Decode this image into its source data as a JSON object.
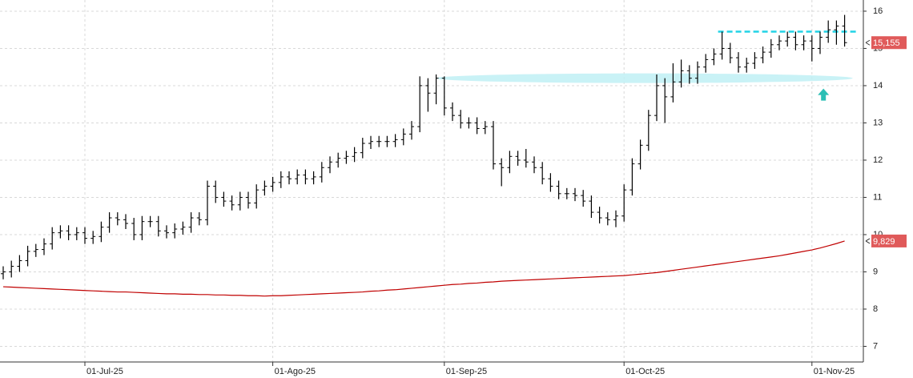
{
  "chart_data": {
    "type": "ohlc",
    "categories": [
      null,
      null,
      null,
      null,
      null,
      null,
      null,
      null,
      null,
      null,
      "01-Jul-25",
      null,
      null,
      null,
      null,
      null,
      null,
      null,
      null,
      null,
      null,
      null,
      null,
      null,
      null,
      null,
      null,
      null,
      null,
      null,
      null,
      null,
      null,
      "01-Ago-25",
      null,
      null,
      null,
      null,
      null,
      null,
      null,
      null,
      null,
      null,
      null,
      null,
      null,
      null,
      null,
      null,
      null,
      null,
      null,
      null,
      "01-Sep-25",
      null,
      null,
      null,
      null,
      null,
      null,
      null,
      null,
      null,
      null,
      null,
      null,
      null,
      null,
      null,
      null,
      null,
      null,
      null,
      null,
      null,
      "01-Oct-25",
      null,
      null,
      null,
      null,
      null,
      null,
      null,
      null,
      null,
      null,
      null,
      null,
      null,
      null,
      null,
      null,
      null,
      null,
      null,
      null,
      null,
      null,
      "01-Nov-25",
      null,
      null,
      null,
      null
    ],
    "open": [
      8.95,
      9.0,
      9.15,
      9.3,
      9.55,
      9.6,
      9.75,
      10.05,
      10.1,
      10.0,
      10.05,
      9.9,
      9.95,
      10.2,
      10.45,
      10.4,
      10.3,
      10.0,
      10.35,
      10.35,
      10.1,
      10.05,
      10.15,
      10.2,
      10.45,
      10.4,
      11.3,
      11.0,
      10.9,
      10.8,
      11.0,
      10.85,
      11.2,
      11.3,
      11.4,
      11.55,
      11.5,
      11.6,
      11.5,
      11.55,
      11.8,
      11.95,
      12.05,
      12.1,
      12.2,
      12.45,
      12.5,
      12.5,
      12.5,
      12.55,
      12.7,
      12.9,
      14.0,
      13.8,
      14.2,
      13.4,
      13.2,
      13.0,
      13.0,
      12.85,
      12.9,
      11.9,
      11.8,
      12.1,
      12.0,
      11.95,
      11.8,
      11.5,
      11.3,
      11.1,
      11.1,
      11.05,
      10.9,
      10.6,
      10.45,
      10.4,
      10.5,
      11.2,
      11.9,
      12.4,
      13.2,
      14.0,
      13.7,
      14.1,
      14.4,
      14.2,
      14.5,
      14.7,
      14.85,
      15.0,
      14.75,
      14.5,
      14.6,
      14.75,
      14.9,
      15.1,
      15.2,
      15.3,
      15.1,
      15.2,
      15.0,
      15.3,
      15.5,
      15.6
    ],
    "high": [
      9.15,
      9.3,
      9.45,
      9.7,
      9.75,
      9.9,
      10.2,
      10.25,
      10.25,
      10.2,
      10.2,
      10.1,
      10.35,
      10.6,
      10.6,
      10.55,
      10.45,
      10.5,
      10.5,
      10.5,
      10.25,
      10.3,
      10.35,
      10.6,
      10.6,
      11.45,
      11.45,
      11.15,
      11.05,
      11.15,
      11.15,
      11.35,
      11.45,
      11.55,
      11.7,
      11.7,
      11.75,
      11.75,
      11.7,
      11.95,
      12.1,
      12.2,
      12.25,
      12.35,
      12.6,
      12.65,
      12.65,
      12.65,
      12.7,
      12.85,
      13.05,
      14.25,
      14.2,
      14.3,
      14.25,
      13.55,
      13.35,
      13.15,
      13.15,
      13.05,
      13.05,
      12.05,
      12.25,
      12.25,
      12.3,
      12.1,
      11.95,
      11.65,
      11.45,
      11.25,
      11.25,
      11.2,
      11.05,
      10.75,
      10.6,
      10.65,
      11.35,
      12.05,
      12.55,
      13.35,
      14.3,
      14.2,
      14.6,
      14.7,
      14.55,
      14.65,
      14.85,
      15.0,
      15.45,
      15.15,
      14.9,
      14.75,
      14.9,
      15.05,
      15.25,
      15.35,
      15.45,
      15.45,
      15.35,
      15.35,
      15.45,
      15.75,
      15.75,
      15.9
    ],
    "low": [
      8.8,
      8.85,
      9.0,
      9.15,
      9.4,
      9.45,
      9.6,
      9.9,
      9.85,
      9.85,
      9.75,
      9.75,
      9.8,
      10.05,
      10.25,
      10.15,
      9.85,
      9.85,
      10.2,
      9.95,
      9.9,
      9.9,
      10.0,
      10.05,
      10.25,
      10.25,
      10.85,
      10.75,
      10.65,
      10.65,
      10.7,
      10.7,
      11.05,
      11.15,
      11.25,
      11.35,
      11.35,
      11.35,
      11.35,
      11.4,
      11.65,
      11.8,
      11.9,
      11.95,
      12.05,
      12.3,
      12.35,
      12.35,
      12.35,
      12.4,
      12.55,
      12.75,
      13.3,
      13.5,
      13.2,
      13.05,
      12.85,
      12.85,
      12.7,
      12.7,
      11.75,
      11.3,
      11.65,
      11.85,
      11.8,
      11.65,
      11.35,
      11.15,
      10.95,
      10.95,
      10.9,
      10.75,
      10.45,
      10.3,
      10.25,
      10.2,
      10.35,
      11.05,
      11.75,
      12.25,
      13.05,
      13.0,
      13.55,
      13.95,
      14.05,
      14.05,
      14.35,
      14.55,
      14.7,
      14.6,
      14.35,
      14.35,
      14.45,
      14.6,
      14.75,
      14.95,
      15.05,
      14.95,
      14.95,
      14.65,
      14.85,
      15.15,
      15.1,
      15.05
    ],
    "close": [
      9.0,
      9.15,
      9.3,
      9.55,
      9.6,
      9.75,
      10.05,
      10.1,
      10.0,
      10.05,
      9.9,
      9.95,
      10.2,
      10.45,
      10.4,
      10.3,
      10.0,
      10.35,
      10.35,
      10.1,
      10.05,
      10.15,
      10.2,
      10.45,
      10.4,
      11.3,
      11.0,
      10.9,
      10.8,
      11.0,
      10.85,
      11.2,
      11.3,
      11.4,
      11.55,
      11.5,
      11.6,
      11.5,
      11.55,
      11.8,
      11.95,
      12.05,
      12.1,
      12.2,
      12.45,
      12.5,
      12.5,
      12.5,
      12.55,
      12.7,
      12.9,
      14.0,
      13.8,
      14.2,
      13.4,
      13.2,
      13.0,
      13.0,
      12.85,
      12.9,
      11.9,
      11.8,
      12.1,
      12.0,
      11.95,
      11.8,
      11.5,
      11.3,
      11.1,
      11.1,
      11.05,
      10.9,
      10.6,
      10.45,
      10.4,
      10.5,
      11.2,
      11.9,
      12.4,
      13.2,
      14.0,
      13.7,
      14.1,
      14.4,
      14.2,
      14.5,
      14.7,
      14.85,
      15.0,
      14.75,
      14.5,
      14.6,
      14.75,
      14.9,
      15.1,
      15.2,
      15.3,
      15.1,
      15.2,
      15.0,
      15.3,
      15.5,
      15.6,
      15.155
    ],
    "color": "#000000",
    "close_label": "15,155",
    "close_label_color": "#e05a5a",
    "ma": {
      "color": "#c00000",
      "last_label": "9,829",
      "values": [
        8.6,
        8.59,
        8.58,
        8.57,
        8.56,
        8.55,
        8.54,
        8.53,
        8.52,
        8.51,
        8.5,
        8.49,
        8.48,
        8.47,
        8.46,
        8.46,
        8.45,
        8.44,
        8.43,
        8.42,
        8.41,
        8.41,
        8.4,
        8.4,
        8.39,
        8.39,
        8.38,
        8.38,
        8.37,
        8.37,
        8.36,
        8.36,
        8.35,
        8.36,
        8.36,
        8.37,
        8.38,
        8.39,
        8.4,
        8.41,
        8.42,
        8.43,
        8.44,
        8.45,
        8.46,
        8.48,
        8.49,
        8.51,
        8.52,
        8.54,
        8.56,
        8.58,
        8.6,
        8.62,
        8.64,
        8.66,
        8.67,
        8.69,
        8.7,
        8.72,
        8.73,
        8.75,
        8.76,
        8.77,
        8.78,
        8.79,
        8.8,
        8.81,
        8.82,
        8.83,
        8.84,
        8.85,
        8.86,
        8.87,
        8.88,
        8.89,
        8.9,
        8.92,
        8.94,
        8.96,
        8.98,
        9.01,
        9.04,
        9.07,
        9.1,
        9.13,
        9.16,
        9.19,
        9.22,
        9.25,
        9.28,
        9.31,
        9.34,
        9.37,
        9.4,
        9.43,
        9.47,
        9.51,
        9.55,
        9.59,
        9.64,
        9.7,
        9.76,
        9.829
      ]
    },
    "resistance": {
      "value": 15.45,
      "color": "#22d3e6"
    },
    "support_band": {
      "value": 14.2,
      "color": "#bff0f5"
    },
    "arrow": {
      "value": 13.75,
      "color": "#2bbfb5"
    },
    "ylim": [
      6.58,
      16.3
    ],
    "yticks": [
      7,
      8,
      9,
      10,
      11,
      12,
      13,
      14,
      15,
      16
    ],
    "grid": true
  }
}
